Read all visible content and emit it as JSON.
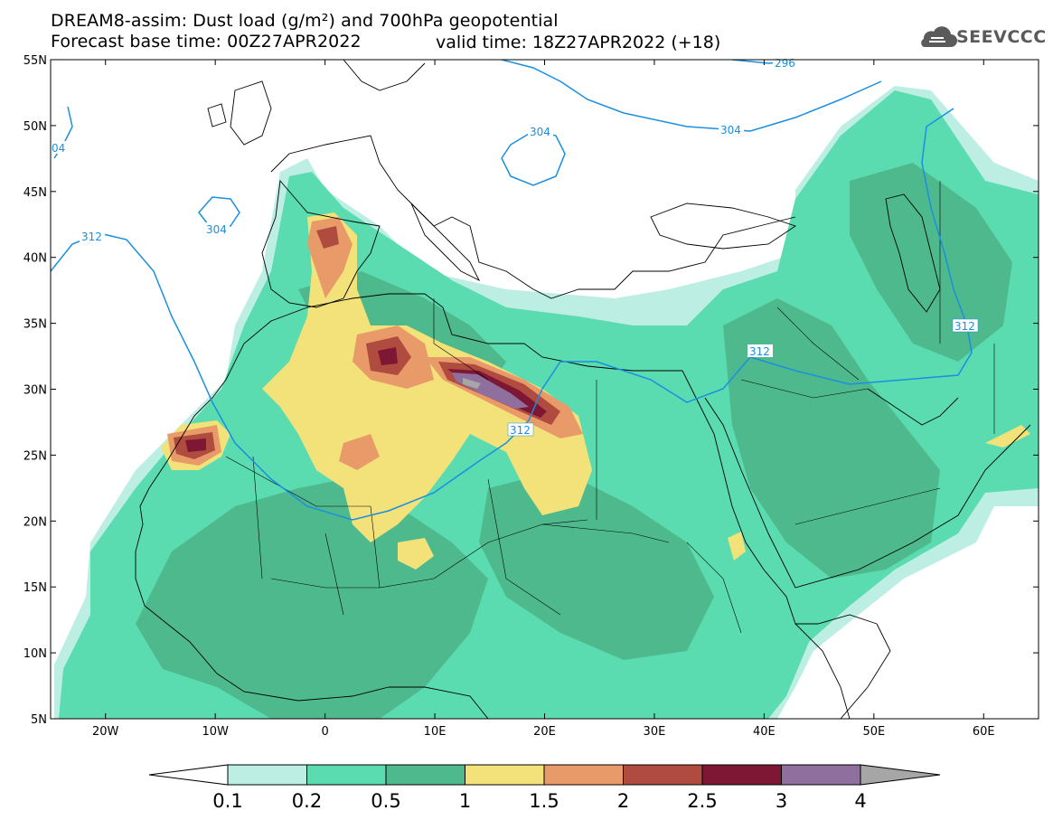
{
  "header": {
    "line1": "DREAM8-assim: Dust load (g/m²) and 700hPa geopotential",
    "line2": "Forecast base time: 00Z27APR2022",
    "valid": "valid time: 18Z27APR2022 (+18)",
    "logo_text": "SEEVCCC",
    "logo_icon": "cloud-logo-icon"
  },
  "map": {
    "lat_labels": [
      "55N",
      "50N",
      "45N",
      "40N",
      "35N",
      "30N",
      "25N",
      "20N",
      "15N",
      "10N",
      "5N"
    ],
    "lon_labels": [
      "20W",
      "10W",
      "0",
      "10E",
      "20E",
      "30E",
      "40E",
      "50E",
      "60E"
    ],
    "contour_labels": [
      "296",
      "304",
      "304",
      "04",
      "304",
      "312",
      "312",
      "312",
      "312"
    ]
  },
  "colorbar": {
    "ticks": [
      "0.1",
      "0.2",
      "0.5",
      "1",
      "1.5",
      "2",
      "2.5",
      "3",
      "4"
    ],
    "colors": [
      "#bdeee4",
      "#5bdbb0",
      "#4fb98e",
      "#f3e27a",
      "#e99a69",
      "#b04c3f",
      "#7d1733",
      "#8e6f9e"
    ],
    "under_color": "#ffffff",
    "over_color": "#a6a6a6"
  },
  "palette": {
    "land_outline": "#000000",
    "contour": "#1a8fe0"
  }
}
